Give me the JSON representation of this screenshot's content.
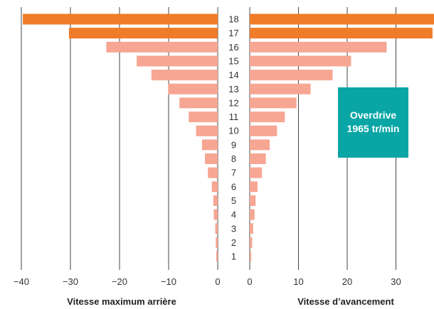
{
  "chart_data": {
    "type": "bar",
    "orientation": "horizontal",
    "categories": [
      "1",
      "2",
      "3",
      "4",
      "5",
      "6",
      "7",
      "8",
      "9",
      "10",
      "11",
      "12",
      "13",
      "14",
      "15",
      "16",
      "17",
      "18"
    ],
    "series": [
      {
        "side": "left",
        "values": [
          -0.3,
          -0.4,
          -0.5,
          -0.8,
          -0.9,
          -1.2,
          -2.0,
          -2.6,
          -3.2,
          -4.4,
          -5.9,
          -7.8,
          -10.1,
          -13.5,
          -16.5,
          -22.7,
          -30.3,
          -39.7
        ]
      },
      {
        "side": "right",
        "values": [
          0.3,
          0.5,
          0.7,
          1.0,
          1.2,
          1.6,
          2.5,
          3.3,
          4.1,
          5.6,
          7.2,
          9.6,
          12.5,
          17.0,
          20.8,
          28.1,
          37.5,
          38.3
        ]
      }
    ],
    "highlight_categories": [
      "17",
      "18"
    ],
    "left_axis": {
      "range": [
        -42,
        0
      ],
      "ticks": [
        -40,
        -30,
        -20,
        -10,
        0
      ],
      "tick_labels": [
        "−40",
        "−30",
        "−20",
        "−10",
        "0"
      ],
      "title": "Vitesse maximum arrière"
    },
    "right_axis": {
      "range": [
        0,
        38
      ],
      "ticks": [
        0,
        10,
        20,
        30
      ],
      "tick_labels": [
        "0",
        "10",
        "20",
        "30"
      ],
      "title": "Vitesse d’avancement"
    },
    "grid": true,
    "annotation": {
      "lines": [
        "Overdrive",
        "1965 tr/min"
      ]
    },
    "colors": {
      "bar_normal": "#F7A693",
      "bar_highlight": "#F07B28",
      "annotation_bg": "#0AA6A6",
      "grid": "#444444"
    }
  }
}
